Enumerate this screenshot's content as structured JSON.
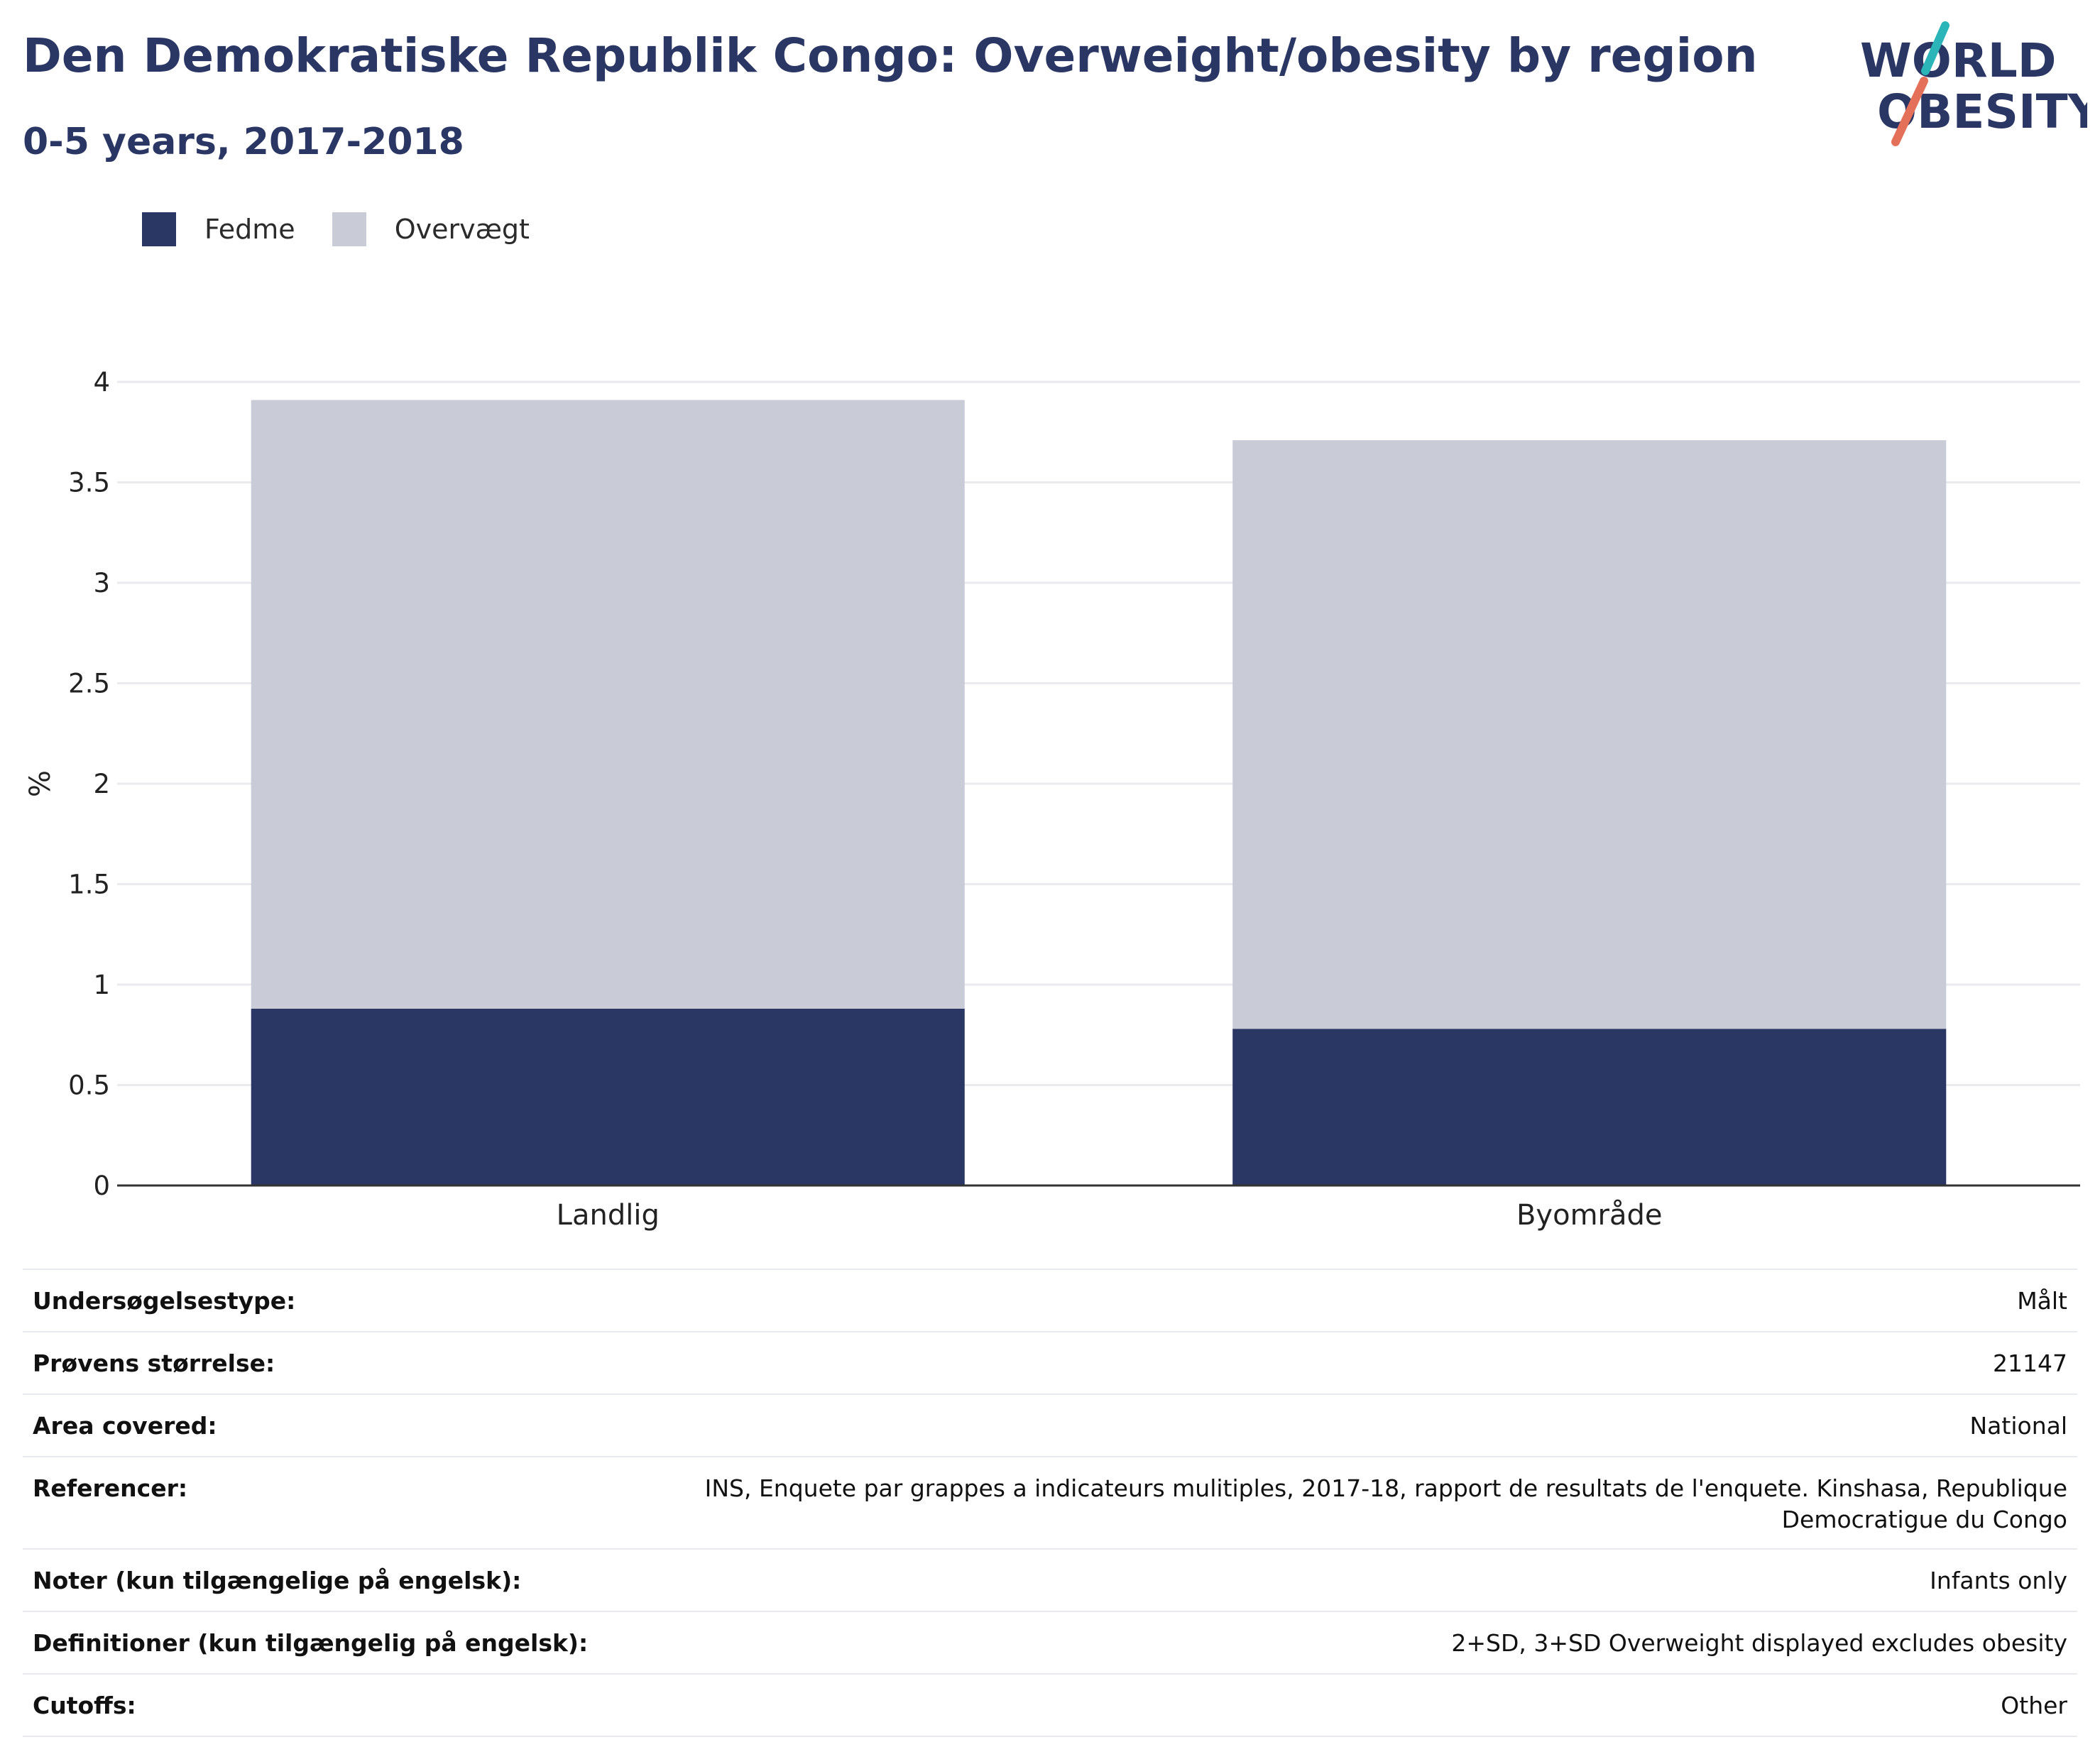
{
  "header": {
    "title": "Den Demokratiske Republik Congo: Overweight/obesity by region",
    "subtitle": "0-5 years, 2017-2018",
    "logo_line1": "WORLD",
    "logo_line2": "OBESITY"
  },
  "colors": {
    "title": "#2a3663",
    "fedme": "#2a3663",
    "overvaegt": "#c9ccd7",
    "grid": "#e8eaee",
    "axis": "#333333",
    "logo_teal": "#2bb5b8",
    "logo_coral": "#e4705a"
  },
  "legend": {
    "items": [
      {
        "label": "Fedme",
        "color": "#2a3663"
      },
      {
        "label": "Overvægt",
        "color": "#c9ccd7"
      }
    ]
  },
  "chart_data": {
    "type": "bar",
    "stacked": true,
    "categories": [
      "Landlig",
      "Byområde"
    ],
    "series": [
      {
        "name": "Fedme",
        "values": [
          0.88,
          0.78
        ]
      },
      {
        "name": "Overvægt",
        "values": [
          3.03,
          2.93
        ]
      }
    ],
    "ylabel": "%",
    "xlabel": "",
    "ylim": [
      0,
      4
    ],
    "yticks": [
      "0",
      "0.5",
      "1",
      "1.5",
      "2",
      "2.5",
      "3",
      "3.5",
      "4"
    ],
    "grid": true,
    "legend_position": "top-left"
  },
  "info": [
    {
      "label": "Undersøgelsestype:",
      "value": "Målt"
    },
    {
      "label": "Prøvens størrelse:",
      "value": "21147"
    },
    {
      "label": "Area covered:",
      "value": "National"
    },
    {
      "label": "Referencer:",
      "value": "INS, Enquete par grappes a indicateurs mulitiples, 2017-18, rapport de resultats de l'enquete. Kinshasa, Republique Democratigue du Congo"
    },
    {
      "label": "Noter (kun tilgængelige på engelsk):",
      "value": "Infants only"
    },
    {
      "label": "Definitioner (kun tilgængelig på engelsk):",
      "value": "2+SD, 3+SD Overweight displayed excludes obesity"
    },
    {
      "label": "Cutoffs:",
      "value": "Other"
    }
  ]
}
